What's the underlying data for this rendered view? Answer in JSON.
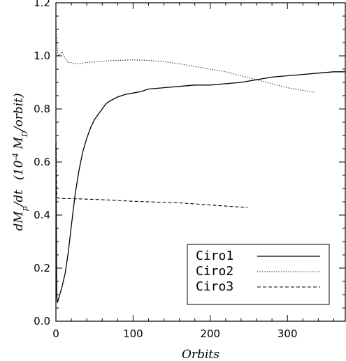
{
  "chart_data": {
    "type": "line",
    "xlabel": "Orbits",
    "ylabel": {
      "prefix": "dM",
      "prefix_sub": "p",
      "suffix": "/dt",
      "units_open": "(10",
      "units_exp": "-4",
      "units_mid": " M",
      "units_sub": "D",
      "units_close": "/orbit)"
    },
    "xlim": [
      0,
      375
    ],
    "ylim": [
      0.0,
      1.2
    ],
    "xticks": [
      0,
      100,
      200,
      300
    ],
    "xtick_labels": [
      "0",
      "100",
      "200",
      "300"
    ],
    "yticks": [
      0.0,
      0.2,
      0.4,
      0.6,
      0.8,
      1.0,
      1.2
    ],
    "ytick_labels": [
      "0.0",
      "0.2",
      "0.4",
      "0.6",
      "0.8",
      "1.0",
      "1.2"
    ],
    "legend_position": "bottom-right",
    "series": [
      {
        "name": "Ciro1",
        "line_style": "solid",
        "color": "#000000",
        "x": [
          0,
          1,
          2,
          3,
          5,
          8,
          12,
          16,
          20,
          25,
          30,
          35,
          40,
          45,
          50,
          55,
          60,
          65,
          70,
          80,
          90,
          100,
          110,
          120,
          140,
          160,
          180,
          200,
          220,
          240,
          260,
          280,
          300,
          320,
          340,
          360,
          375
        ],
        "y": [
          0.67,
          0.1,
          0.07,
          0.08,
          0.1,
          0.13,
          0.18,
          0.26,
          0.36,
          0.48,
          0.57,
          0.64,
          0.69,
          0.73,
          0.76,
          0.78,
          0.8,
          0.82,
          0.83,
          0.845,
          0.855,
          0.86,
          0.865,
          0.875,
          0.88,
          0.885,
          0.89,
          0.89,
          0.895,
          0.9,
          0.91,
          0.92,
          0.925,
          0.93,
          0.935,
          0.94,
          0.94
        ]
      },
      {
        "name": "Ciro2",
        "line_style": "dotted",
        "color": "#000000",
        "x": [
          0,
          1,
          2,
          3,
          5,
          8,
          12,
          16,
          20,
          25,
          30,
          40,
          50,
          60,
          80,
          100,
          120,
          140,
          160,
          180,
          200,
          220,
          240,
          260,
          280,
          300,
          320,
          335
        ],
        "y": [
          1.12,
          1.06,
          1.02,
          1.0,
          1.005,
          1.015,
          0.99,
          0.975,
          0.975,
          0.97,
          0.97,
          0.975,
          0.977,
          0.98,
          0.983,
          0.985,
          0.983,
          0.978,
          0.97,
          0.96,
          0.95,
          0.94,
          0.925,
          0.91,
          0.895,
          0.88,
          0.87,
          0.862
        ]
      },
      {
        "name": "Ciro3",
        "line_style": "dashed",
        "color": "#000000",
        "x": [
          0,
          1,
          2,
          5,
          10,
          20,
          40,
          60,
          80,
          100,
          120,
          140,
          160,
          180,
          200,
          220,
          240,
          248
        ],
        "y": [
          0.7,
          0.48,
          0.465,
          0.463,
          0.462,
          0.462,
          0.46,
          0.458,
          0.455,
          0.452,
          0.45,
          0.448,
          0.446,
          0.442,
          0.438,
          0.434,
          0.43,
          0.428
        ]
      }
    ]
  }
}
